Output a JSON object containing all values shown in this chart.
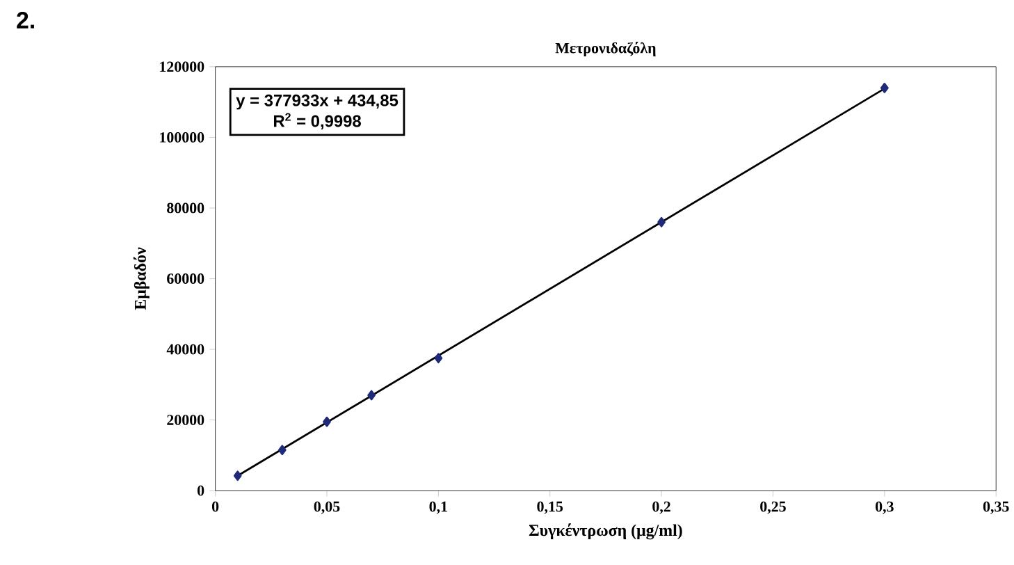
{
  "chart_data": {
    "type": "scatter",
    "title": "Μετρονιδαζόλη",
    "xlabel": "Συγκέντρωση (μg/ml)",
    "ylabel": "Εμβαδόν",
    "annotations": [
      "2.",
      "y = 377933x + 434,85",
      "R$^{2}$ = 0,9998"
    ],
    "series": [
      {
        "marker": "diamond",
        "color": "#1f2a78",
        "x": [
          0.01,
          0.03,
          0.05,
          0.07,
          0.1,
          0.2,
          0.3
        ],
        "values": [
          4200,
          11500,
          19500,
          27000,
          37500,
          76000,
          114000
        ]
      },
      {
        "type": "line",
        "color": "#000000",
        "x": [
          0.01,
          0.3
        ],
        "values": [
          4200,
          113800
        ]
      }
    ],
    "xlim": [
      0,
      0.35
    ],
    "ylim": [
      0,
      120000
    ],
    "xticks": [
      0,
      {
        "value": 0.05,
        "label": "0,05"
      },
      {
        "value": 0.1,
        "label": "0,1"
      },
      {
        "value": 0.15,
        "label": "0,15"
      },
      {
        "value": 0.2,
        "label": "0,2"
      },
      {
        "value": 0.25,
        "label": "0,25"
      },
      {
        "value": 0.3,
        "label": "0,3"
      },
      {
        "value": 0.35,
        "label": "0,35"
      }
    ],
    "yticks": [
      0,
      20000,
      40000,
      60000,
      80000,
      100000,
      120000
    ]
  }
}
